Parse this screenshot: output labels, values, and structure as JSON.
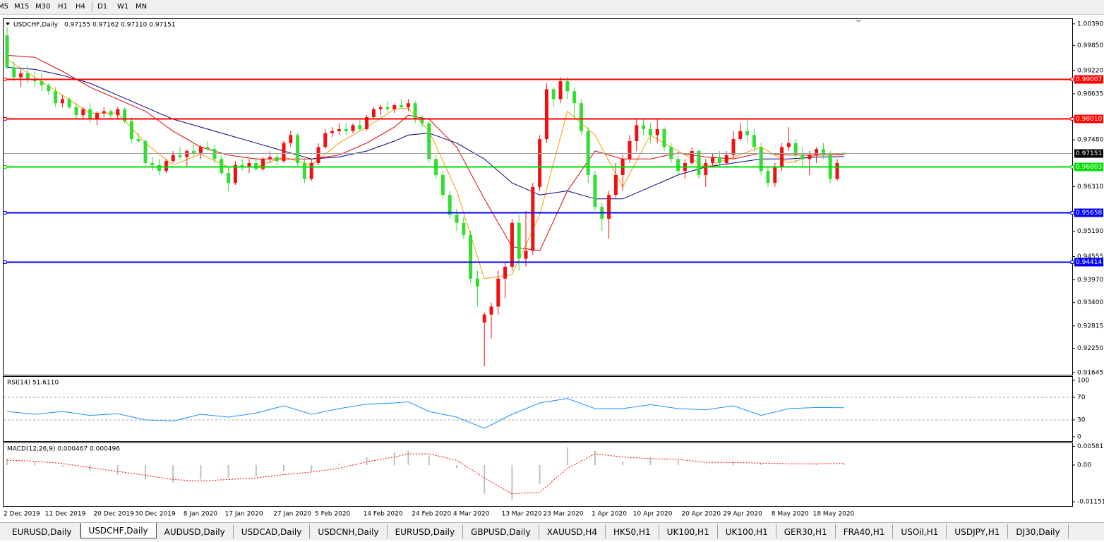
{
  "toolbar": {
    "timeframes": [
      "M5",
      "M15",
      "M30",
      "H1",
      "H4",
      "D1",
      "W1",
      "MN"
    ]
  },
  "tabs": [
    "EURUSD,Daily",
    "USDCHF,Daily",
    "AUDUSD,Daily",
    "USDCAD,Daily",
    "USDCNH,Daily",
    "EURUSD,Daily",
    "GBPUSD,Daily",
    "XAUUSD,H4",
    "HK50,H1",
    "UK100,H1",
    "UK100,H1",
    "GER30,H1",
    "FRA40,H1",
    "USOil,H1",
    "USDJPY,H1",
    "DJ30,Daily"
  ],
  "chart_data": [
    {
      "type": "candlestick",
      "title": "USDCHF,Daily",
      "subtitle": "0.97155 0.97162 0.97110 0.97151",
      "categories": [
        "2 Dec 2019",
        null,
        null,
        null,
        null,
        null,
        "11 Dec 2019",
        null,
        null,
        null,
        null,
        null,
        null,
        "20 Dec 2019",
        null,
        null,
        null,
        null,
        null,
        "30 Dec 2019",
        null,
        null,
        null,
        null,
        null,
        null,
        "8 Jan 2020",
        null,
        null,
        null,
        null,
        null,
        "17 Jan 2020",
        null,
        null,
        null,
        null,
        null,
        null,
        "27 Jan 2020",
        null,
        null,
        null,
        null,
        null,
        "5 Feb 2020",
        null,
        null,
        null,
        null,
        null,
        null,
        "14 Feb 2020",
        null,
        null,
        null,
        null,
        null,
        null,
        "24 Feb 2020",
        null,
        null,
        null,
        null,
        null,
        "4 Mar 2020",
        null,
        null,
        null,
        null,
        null,
        null,
        "13 Mar 2020",
        null,
        null,
        null,
        null,
        null,
        "23 Mar 2020",
        null,
        null,
        null,
        null,
        null,
        null,
        "1 Apr 2020",
        null,
        null,
        null,
        null,
        null,
        "10 Apr 2020",
        null,
        null,
        null,
        null,
        null,
        null,
        "20 Apr 2020",
        null,
        null,
        null,
        null,
        null,
        "29 Apr 2020",
        null,
        null,
        null,
        null,
        null,
        null,
        "8 May 2020",
        null,
        null,
        null,
        null,
        null,
        "18 May 2020",
        null,
        null,
        null,
        null
      ],
      "open": [
        1.001,
        0.993,
        0.9905,
        0.9915,
        0.99,
        0.9895,
        0.9885,
        0.987,
        0.984,
        0.985,
        0.983,
        0.981,
        0.9825,
        0.98,
        0.9815,
        0.982,
        0.981,
        0.9825,
        0.9795,
        0.975,
        0.9745,
        0.969,
        0.9685,
        0.967,
        0.9695,
        0.971,
        0.9705,
        0.972,
        0.9715,
        0.973,
        0.9725,
        0.97,
        0.9665,
        0.964,
        0.9685,
        0.968,
        0.969,
        0.9675,
        0.97,
        0.9705,
        0.9695,
        0.974,
        0.976,
        0.969,
        0.965,
        0.969,
        0.973,
        0.9765,
        0.977,
        0.9775,
        0.977,
        0.9785,
        0.9775,
        0.9805,
        0.9825,
        0.983,
        0.9825,
        0.9835,
        0.983,
        0.984,
        0.98,
        0.979,
        0.97,
        0.966,
        0.961,
        0.956,
        0.954,
        0.951,
        0.94,
        0.929,
        0.931,
        0.933,
        0.94,
        0.943,
        0.954,
        0.945,
        0.947,
        0.963,
        0.975,
        0.9875,
        0.985,
        0.9895,
        0.987,
        0.984,
        0.977,
        0.966,
        0.958,
        0.955,
        0.961,
        0.966,
        0.97,
        0.9745,
        0.9785,
        0.9775,
        0.976,
        0.9775,
        0.973,
        0.97,
        0.967,
        0.969,
        0.972,
        0.966,
        0.969,
        0.9705,
        0.969,
        0.971,
        0.975,
        0.977,
        0.976,
        0.973,
        0.967,
        0.964,
        0.968,
        0.973,
        0.974,
        0.971,
        0.97,
        0.971,
        0.9725,
        0.971,
        0.965,
        0.97155
      ],
      "high": [
        1.003,
        0.9945,
        0.9925,
        0.9935,
        0.992,
        0.9915,
        0.989,
        0.988,
        0.986,
        0.9855,
        0.984,
        0.983,
        0.984,
        0.982,
        0.983,
        0.9825,
        0.983,
        0.983,
        0.9805,
        0.9765,
        0.975,
        0.9705,
        0.97,
        0.97,
        0.972,
        0.973,
        0.9725,
        0.974,
        0.9735,
        0.9745,
        0.9735,
        0.971,
        0.968,
        0.9695,
        0.97,
        0.97,
        0.9705,
        0.9705,
        0.972,
        0.9715,
        0.9745,
        0.977,
        0.9765,
        0.97,
        0.97,
        0.974,
        0.9775,
        0.978,
        0.979,
        0.979,
        0.979,
        0.98,
        0.981,
        0.983,
        0.9835,
        0.9845,
        0.984,
        0.985,
        0.985,
        0.9845,
        0.981,
        0.9795,
        0.971,
        0.967,
        0.962,
        0.9575,
        0.9555,
        0.952,
        0.942,
        0.9315,
        0.934,
        0.942,
        0.944,
        0.955,
        0.956,
        0.957,
        0.964,
        0.976,
        0.989,
        0.988,
        0.9905,
        0.9905,
        0.988,
        0.985,
        0.978,
        0.967,
        0.959,
        0.962,
        0.969,
        0.971,
        0.976,
        0.98,
        0.98,
        0.979,
        0.98,
        0.978,
        0.974,
        0.9715,
        0.97,
        0.973,
        0.9725,
        0.97,
        0.9715,
        0.972,
        0.972,
        0.977,
        0.979,
        0.98,
        0.9775,
        0.974,
        0.968,
        0.969,
        0.974,
        0.978,
        0.975,
        0.973,
        0.972,
        0.973,
        0.974,
        0.972,
        0.97,
        0.97162
      ],
      "low": [
        0.9925,
        0.9895,
        0.988,
        0.989,
        0.988,
        0.987,
        0.986,
        0.983,
        0.983,
        0.9825,
        0.98,
        0.98,
        0.979,
        0.9785,
        0.9805,
        0.98,
        0.98,
        0.979,
        0.974,
        0.974,
        0.968,
        0.967,
        0.966,
        0.9665,
        0.969,
        0.97,
        0.968,
        0.9705,
        0.97,
        0.972,
        0.969,
        0.966,
        0.962,
        0.9635,
        0.967,
        0.9665,
        0.967,
        0.967,
        0.969,
        0.9685,
        0.969,
        0.973,
        0.968,
        0.964,
        0.9645,
        0.9685,
        0.9725,
        0.9755,
        0.976,
        0.976,
        0.9765,
        0.977,
        0.977,
        0.98,
        0.981,
        0.982,
        0.9815,
        0.9825,
        0.982,
        0.979,
        0.978,
        0.969,
        0.965,
        0.96,
        0.955,
        0.952,
        0.95,
        0.939,
        0.933,
        0.918,
        0.925,
        0.931,
        0.935,
        0.942,
        0.942,
        0.943,
        0.946,
        0.962,
        0.974,
        0.983,
        0.984,
        0.985,
        0.98,
        0.976,
        0.964,
        0.957,
        0.952,
        0.95,
        0.96,
        0.962,
        0.969,
        0.972,
        0.976,
        0.974,
        0.974,
        0.972,
        0.969,
        0.966,
        0.965,
        0.9685,
        0.965,
        0.963,
        0.968,
        0.968,
        0.9685,
        0.97,
        0.9745,
        0.974,
        0.972,
        0.966,
        0.963,
        0.963,
        0.967,
        0.972,
        0.969,
        0.968,
        0.966,
        0.969,
        0.97,
        0.964,
        0.9645,
        0.9711
      ],
      "close": [
        0.993,
        0.9905,
        0.9915,
        0.99,
        0.9895,
        0.9885,
        0.987,
        0.984,
        0.985,
        0.983,
        0.981,
        0.9825,
        0.98,
        0.9815,
        0.982,
        0.981,
        0.9825,
        0.9795,
        0.975,
        0.9745,
        0.969,
        0.9685,
        0.967,
        0.9695,
        0.971,
        0.9705,
        0.972,
        0.9715,
        0.973,
        0.9725,
        0.97,
        0.9665,
        0.964,
        0.9685,
        0.968,
        0.969,
        0.9675,
        0.97,
        0.9705,
        0.9695,
        0.974,
        0.976,
        0.969,
        0.965,
        0.969,
        0.973,
        0.9765,
        0.977,
        0.9775,
        0.977,
        0.9785,
        0.9775,
        0.9805,
        0.9825,
        0.983,
        0.9825,
        0.9835,
        0.983,
        0.984,
        0.98,
        0.979,
        0.97,
        0.966,
        0.961,
        0.956,
        0.954,
        0.951,
        0.94,
        0.938,
        0.931,
        0.933,
        0.94,
        0.943,
        0.954,
        0.945,
        0.947,
        0.963,
        0.975,
        0.9875,
        0.985,
        0.9895,
        0.987,
        0.984,
        0.977,
        0.966,
        0.958,
        0.955,
        0.961,
        0.966,
        0.97,
        0.9745,
        0.9785,
        0.9775,
        0.976,
        0.9775,
        0.973,
        0.97,
        0.967,
        0.969,
        0.972,
        0.966,
        0.969,
        0.9705,
        0.969,
        0.971,
        0.975,
        0.977,
        0.976,
        0.973,
        0.967,
        0.964,
        0.968,
        0.973,
        0.974,
        0.971,
        0.97,
        0.971,
        0.9725,
        0.971,
        0.965,
        0.969,
        0.97151
      ],
      "up_color": "#ee1111",
      "down_color": "#33dd33",
      "ylim": [
        0.9159,
        1.0051
      ],
      "yticks": [
        {
          "value": 1.0039,
          "label": "1.00390"
        },
        {
          "value": 0.9985,
          "label": "0.99850"
        },
        {
          "value": 0.9922,
          "label": "0.99220"
        },
        0.98635,
        {
          "value": 0.9748,
          "label": "0.97480"
        },
        {
          "value": 0.9631,
          "label": "0.96310"
        },
        {
          "value": 0.9519,
          "label": "0.95190"
        },
        0.94555,
        {
          "value": 0.9397,
          "label": "0.93970"
        },
        {
          "value": 0.934,
          "label": "0.93400"
        },
        0.92815,
        {
          "value": 0.9225,
          "label": "0.92250"
        },
        0.91645
      ],
      "levels": [
        {
          "value": 0.99007,
          "color": "#ff0000"
        },
        {
          "value": 0.9801,
          "label": "0.98010",
          "color": "#ff0000"
        },
        {
          "value": 0.96803,
          "color": "#00dd00"
        },
        {
          "value": 0.95658,
          "color": "#0000ff"
        },
        {
          "value": 0.94414,
          "color": "#0000ff"
        }
      ],
      "overlays": [
        {
          "color": "#ff9900",
          "x": [
            0,
            4,
            8,
            12,
            16,
            20,
            24,
            28,
            32,
            36,
            40,
            44,
            48,
            52,
            56,
            58,
            61,
            65,
            69,
            73,
            77,
            81,
            85,
            89,
            93,
            97,
            101,
            105,
            109,
            113,
            117,
            121
          ],
          "values": [
            0.995,
            0.9905,
            0.986,
            0.9815,
            0.9815,
            0.974,
            0.9685,
            0.9712,
            0.968,
            0.968,
            0.9705,
            0.9685,
            0.974,
            0.978,
            0.9825,
            0.9828,
            0.977,
            0.962,
            0.94,
            0.941,
            0.956,
            0.982,
            0.976,
            0.963,
            0.976,
            0.972,
            0.968,
            0.9705,
            0.973,
            0.969,
            0.971,
            0.9712
          ]
        },
        {
          "color": "#dd0000",
          "x": [
            0,
            4,
            8,
            12,
            16,
            20,
            24,
            28,
            32,
            36,
            40,
            44,
            48,
            52,
            56,
            58,
            61,
            65,
            69,
            73,
            77,
            81,
            85,
            89,
            93,
            97,
            101,
            105,
            109,
            113,
            117,
            121
          ],
          "values": [
            0.996,
            0.9955,
            0.992,
            0.988,
            0.985,
            0.982,
            0.977,
            0.973,
            0.971,
            0.97,
            0.97,
            0.97,
            0.971,
            0.974,
            0.978,
            0.981,
            0.98,
            0.973,
            0.96,
            0.948,
            0.947,
            0.962,
            0.972,
            0.97,
            0.97,
            0.9715,
            0.9705,
            0.97,
            0.9715,
            0.971,
            0.971,
            0.9711
          ]
        },
        {
          "color": "#000080",
          "x": [
            0,
            4,
            8,
            12,
            16,
            20,
            24,
            28,
            32,
            36,
            40,
            44,
            48,
            52,
            56,
            58,
            61,
            65,
            69,
            73,
            77,
            81,
            85,
            89,
            93,
            97,
            101,
            105,
            109,
            113,
            117,
            121
          ],
          "values": [
            0.993,
            0.9925,
            0.991,
            0.989,
            0.986,
            0.983,
            0.98,
            0.978,
            0.976,
            0.974,
            0.972,
            0.97,
            0.9705,
            0.972,
            0.9745,
            0.976,
            0.9765,
            0.974,
            0.97,
            0.964,
            0.961,
            0.962,
            0.96,
            0.96,
            0.963,
            0.966,
            0.968,
            0.969,
            0.97,
            0.97,
            0.9705,
            0.9706
          ]
        }
      ]
    },
    {
      "type": "line",
      "title": "RSI(14) 51.6110",
      "color": "#1e90ff",
      "x": [
        0,
        4,
        8,
        12,
        16,
        20,
        24,
        28,
        32,
        36,
        40,
        44,
        48,
        52,
        56,
        58,
        61,
        65,
        69,
        73,
        77,
        81,
        85,
        89,
        93,
        97,
        101,
        105,
        109,
        113,
        117,
        121
      ],
      "values": [
        45,
        40,
        45,
        38,
        41,
        30,
        28,
        40,
        35,
        42,
        55,
        40,
        50,
        58,
        60,
        62,
        45,
        35,
        15,
        40,
        60,
        68,
        50,
        50,
        57,
        50,
        48,
        55,
        38,
        50,
        52,
        51.611
      ],
      "ylim": [
        0,
        100
      ],
      "yticks": [
        100,
        70,
        30,
        0
      ],
      "levels": [
        70,
        30
      ]
    },
    {
      "type": "bar",
      "title": "MACD(12,26,9) 0.000467 0.000496",
      "color": "#c0c0c0",
      "x": [
        0,
        4,
        8,
        12,
        16,
        20,
        24,
        28,
        32,
        36,
        40,
        44,
        48,
        52,
        56,
        58,
        61,
        65,
        69,
        73,
        77,
        81,
        85,
        89,
        93,
        97,
        101,
        105,
        109,
        113,
        117,
        121
      ],
      "values": [
        0.002,
        0.001,
        -0.0005,
        -0.002,
        -0.003,
        -0.0045,
        -0.0055,
        -0.0045,
        -0.004,
        -0.0035,
        -0.002,
        -0.002,
        0.0005,
        0.0025,
        0.004,
        0.0045,
        0.003,
        -0.001,
        -0.009,
        -0.011,
        -0.006,
        0.0055,
        0.0045,
        0.001,
        0.0025,
        0.0015,
        0,
        0.001,
        0.0005,
        0,
        0.0005,
        0.000467
      ],
      "signal": {
        "color": "#ff0000",
        "values": [
          0.0015,
          0.0012,
          0.0005,
          -0.0008,
          -0.002,
          -0.0032,
          -0.0045,
          -0.005,
          -0.0045,
          -0.004,
          -0.003,
          -0.0022,
          -0.001,
          0.001,
          0.0025,
          0.0035,
          0.0035,
          0.0015,
          -0.004,
          -0.009,
          -0.0085,
          -0.001,
          0.0035,
          0.0025,
          0.002,
          0.0018,
          0.0008,
          0.0008,
          0.0006,
          0.0004,
          0.0004,
          0.000496
        ]
      },
      "ylim": [
        -0.0128,
        0.0066
      ],
      "yticks": [
        0.005818,
        {
          "value": 0,
          "label": "0.00"
        },
        -0.011514
      ]
    }
  ]
}
